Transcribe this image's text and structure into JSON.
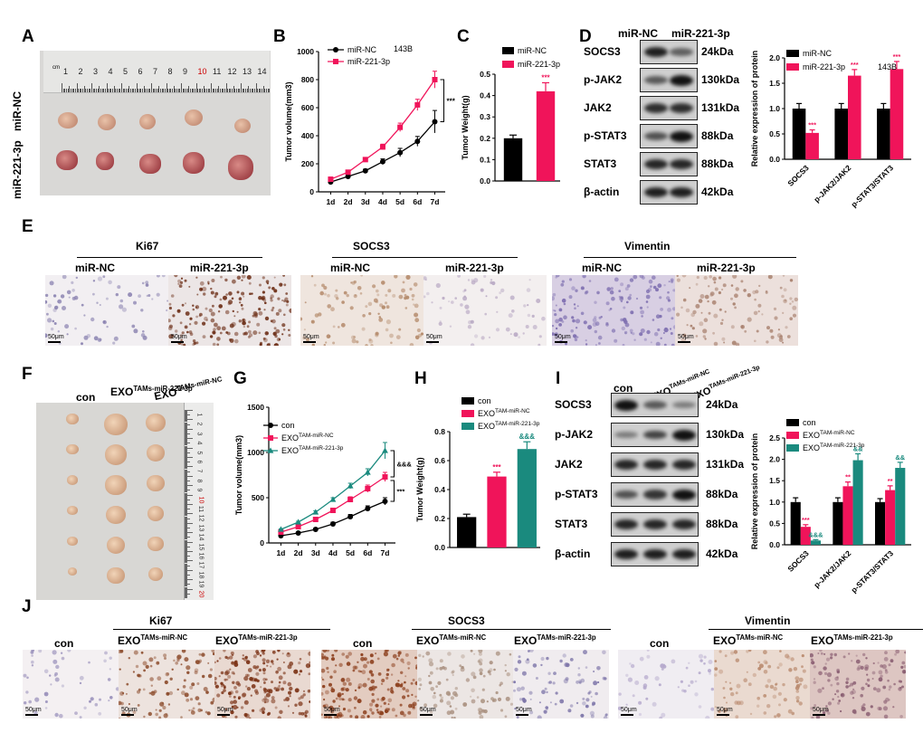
{
  "panels": {
    "A": {
      "letter": "A",
      "row1": "miR-NC",
      "row2": "miR-221-3p",
      "ruler_unit": "cm",
      "ruler_numbers": [
        "1",
        "2",
        "3",
        "4",
        "5",
        "6",
        "7",
        "8",
        "9",
        "10",
        "11",
        "12",
        "13",
        "14"
      ]
    },
    "B": {
      "letter": "B"
    },
    "C": {
      "letter": "C"
    },
    "D": {
      "letter": "D",
      "col1": "miR-NC",
      "col2": "miR-221-3p",
      "rows": [
        {
          "protein": "SOCS3",
          "size": "24kDa"
        },
        {
          "protein": "p-JAK2",
          "size": "130kDa"
        },
        {
          "protein": "JAK2",
          "size": "131kDa"
        },
        {
          "protein": "p-STAT3",
          "size": "88kDa"
        },
        {
          "protein": "STAT3",
          "size": "88kDa"
        },
        {
          "protein": "β-actin",
          "size": "42kDa"
        }
      ]
    },
    "E": {
      "letter": "E",
      "groups": [
        {
          "title": "Ki67",
          "left": "miR-NC",
          "right": "miR-221-3p"
        },
        {
          "title": "SOCS3",
          "left": "miR-NC",
          "right": "miR-221-3p"
        },
        {
          "title": "Vimentin",
          "left": "miR-NC",
          "right": "miR-221-3p"
        }
      ],
      "scale": "50μm"
    },
    "F": {
      "letter": "F",
      "col1": "con",
      "col2_base": "EXO",
      "col2_sup": "TAMs-miR-221-3p",
      "col3_base": "EXO",
      "col3_sup": "TAMs-miR-NC",
      "ruler_numbers": [
        "1",
        "2",
        "3",
        "4",
        "5",
        "6",
        "7",
        "8",
        "9",
        "10",
        "11",
        "12",
        "13",
        "14",
        "15",
        "16",
        "17",
        "18",
        "19",
        "20"
      ]
    },
    "G": {
      "letter": "G"
    },
    "H": {
      "letter": "H"
    },
    "I": {
      "letter": "I",
      "col1": "con",
      "col2_base": "EXO",
      "col2_sup": "TAMs-miR-NC",
      "col3_base": "EXO",
      "col3_sup": "TAMs-miR-221-3p",
      "rows": [
        {
          "protein": "SOCS3",
          "size": "24kDa"
        },
        {
          "protein": "p-JAK2",
          "size": "130kDa"
        },
        {
          "protein": "JAK2",
          "size": "131kDa"
        },
        {
          "protein": "p-STAT3",
          "size": "88kDa"
        },
        {
          "protein": "STAT3",
          "size": "88kDa"
        },
        {
          "protein": "β-actin",
          "size": "42kDa"
        }
      ]
    },
    "J": {
      "letter": "J",
      "groups": [
        {
          "title": "Ki67"
        },
        {
          "title": "SOCS3"
        },
        {
          "title": "Vimentin"
        }
      ],
      "col_con": "con",
      "col_exo": "EXO",
      "sup_nc": "TAMs-miR-NC",
      "sup_221": "TAMs-miR-221-3p",
      "scale": "50μm"
    }
  },
  "colors": {
    "nc": "#000000",
    "mir": "#f0145a",
    "teal": "#1a8a7e",
    "exo_nc": "#f0145a"
  },
  "chart_data": [
    {
      "id": "B",
      "type": "line",
      "title": "",
      "annotation": "143B",
      "xlabel": "",
      "ylabel": "Tumor volume(mm3)",
      "categories": [
        "1d",
        "2d",
        "3d",
        "4d",
        "5d",
        "6d",
        "7d"
      ],
      "ylim": [
        0,
        1000
      ],
      "yticks": [
        0,
        200,
        400,
        600,
        800,
        1000
      ],
      "series": [
        {
          "name": "miR-NC",
          "values": [
            70,
            110,
            150,
            215,
            280,
            360,
            500
          ],
          "errors": [
            5,
            10,
            12,
            20,
            30,
            35,
            80
          ],
          "color": "#000000",
          "marker": "circle"
        },
        {
          "name": "miR-221-3p",
          "values": [
            90,
            140,
            230,
            320,
            460,
            620,
            800
          ],
          "errors": [
            5,
            10,
            15,
            20,
            30,
            40,
            60
          ],
          "color": "#f0145a",
          "marker": "square"
        }
      ],
      "significance": "***"
    },
    {
      "id": "C",
      "type": "bar",
      "title": "",
      "xlabel": "",
      "ylabel": "Tumor Weight(g)",
      "categories": [
        "miR-NC",
        "miR-221-3p"
      ],
      "ylim": [
        0,
        0.5
      ],
      "yticks": [
        0.0,
        0.1,
        0.2,
        0.3,
        0.4,
        0.5
      ],
      "values": [
        0.2,
        0.42
      ],
      "errors": [
        0.015,
        0.04
      ],
      "colors": [
        "#000000",
        "#f0145a"
      ],
      "annotations": [
        "",
        "***"
      ]
    },
    {
      "id": "D",
      "type": "bar",
      "title": "",
      "annotation": "143B",
      "xlabel": "",
      "ylabel": "Relative expression of protein",
      "categories": [
        "SOCS3",
        "p-JAK2/JAK2",
        "p-STAT3/STAT3"
      ],
      "ylim": [
        0,
        2.0
      ],
      "yticks": [
        0.0,
        0.5,
        1.0,
        1.5,
        2.0
      ],
      "series": [
        {
          "name": "miR-NC",
          "values": [
            1.0,
            1.0,
            1.0
          ],
          "errors": [
            0.1,
            0.1,
            0.1
          ],
          "color": "#000000"
        },
        {
          "name": "miR-221-3p",
          "values": [
            0.52,
            1.65,
            1.78
          ],
          "errors": [
            0.06,
            0.12,
            0.15
          ],
          "color": "#f0145a"
        }
      ],
      "annotations": [
        [
          "",
          "***"
        ],
        [
          "",
          "***"
        ],
        [
          "",
          "***"
        ]
      ]
    },
    {
      "id": "G",
      "type": "line",
      "title": "",
      "xlabel": "",
      "ylabel": "Tumor volume(mm3)",
      "categories": [
        "1d",
        "2d",
        "3d",
        "4d",
        "5d",
        "6d",
        "7d"
      ],
      "ylim": [
        0,
        1500
      ],
      "yticks": [
        0,
        500,
        1000,
        1500
      ],
      "series": [
        {
          "name": "con",
          "values": [
            80,
            110,
            150,
            210,
            290,
            380,
            460
          ],
          "errors": [
            5,
            10,
            15,
            20,
            25,
            30,
            40
          ],
          "color": "#000000",
          "marker": "circle"
        },
        {
          "name": "EXO^TAM-miR-NC",
          "values": [
            120,
            180,
            260,
            360,
            480,
            600,
            730
          ],
          "errors": [
            5,
            10,
            15,
            20,
            30,
            40,
            50
          ],
          "color": "#f0145a",
          "marker": "square"
        },
        {
          "name": "EXO^TAM-miR-221-3p",
          "values": [
            150,
            230,
            340,
            480,
            630,
            780,
            1020
          ],
          "errors": [
            5,
            10,
            15,
            20,
            30,
            40,
            90
          ],
          "color": "#1a8a7e",
          "marker": "triangle"
        }
      ],
      "significance": [
        "&&&",
        "***"
      ]
    },
    {
      "id": "H",
      "type": "bar",
      "title": "",
      "xlabel": "",
      "ylabel": "Tumor Weight(g)",
      "categories": [
        "con",
        "EXO^TAM-miR-NC",
        "EXO^TAM-miR-221-3p"
      ],
      "ylim": [
        0,
        0.8
      ],
      "yticks": [
        0.0,
        0.2,
        0.4,
        0.6,
        0.8
      ],
      "values": [
        0.21,
        0.49,
        0.68
      ],
      "errors": [
        0.02,
        0.03,
        0.05
      ],
      "colors": [
        "#000000",
        "#f0145a",
        "#1a8a7e"
      ],
      "annotations": [
        "",
        "***",
        "&&&"
      ]
    },
    {
      "id": "I",
      "type": "bar",
      "title": "",
      "xlabel": "",
      "ylabel": "Relative expression of protein",
      "categories": [
        "SOCS3",
        "p-JAK2/JAK2",
        "p-STAT3/STAT3"
      ],
      "ylim": [
        0,
        2.5
      ],
      "yticks": [
        0.0,
        0.5,
        1.0,
        1.5,
        2.0,
        2.5
      ],
      "series": [
        {
          "name": "con",
          "values": [
            1.0,
            1.0,
            1.0
          ],
          "errors": [
            0.1,
            0.1,
            0.08
          ],
          "color": "#000000"
        },
        {
          "name": "EXO^TAM-miR-NC",
          "values": [
            0.42,
            1.37,
            1.28
          ],
          "errors": [
            0.05,
            0.1,
            0.1
          ],
          "color": "#f0145a"
        },
        {
          "name": "EXO^TAM-miR-221-3p",
          "values": [
            0.1,
            1.98,
            1.8
          ],
          "errors": [
            0.02,
            0.15,
            0.13
          ],
          "color": "#1a8a7e"
        }
      ],
      "annotations": [
        [
          "",
          "***",
          "&&&"
        ],
        [
          "",
          "**",
          "&&"
        ],
        [
          "",
          "**",
          "&&"
        ]
      ]
    }
  ]
}
